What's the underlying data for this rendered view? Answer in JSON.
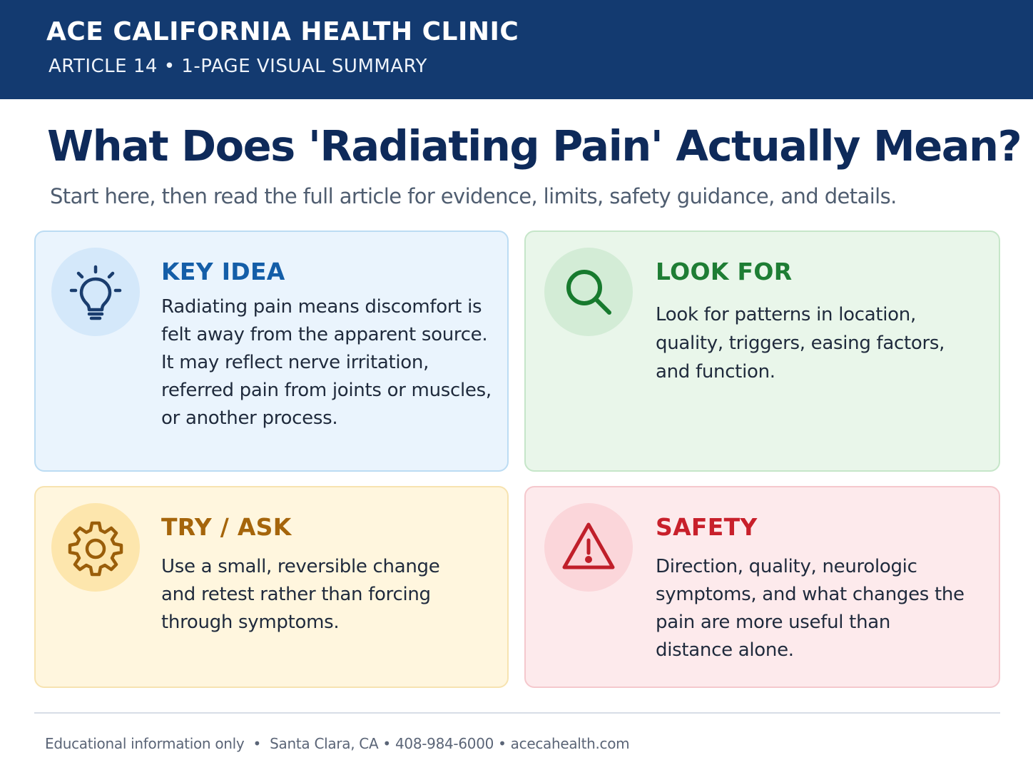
{
  "header": {
    "clinic_name": "ACE CALIFORNIA HEALTH CLINIC",
    "subline": "ARTICLE 14 • 1-PAGE VISUAL SUMMARY",
    "background_color": "#133a70"
  },
  "main": {
    "title": "What Does 'Radiating Pain' Actually Mean?",
    "subtitle": "Start here, then read the full article for evidence, limits, safety guidance, and details."
  },
  "cards": {
    "key_idea": {
      "icon": "lightbulb-icon",
      "heading": "KEY IDEA",
      "body": "Radiating pain means discomfort is felt away from the apparent source. It may reflect nerve irritation, referred pain from joints or muscles, or another process.",
      "accent_color": "#145ea8"
    },
    "look_for": {
      "icon": "magnifier-icon",
      "heading": "LOOK FOR",
      "body": "Look for patterns in location, quality, triggers, easing factors, and function.",
      "accent_color": "#1e7d34"
    },
    "try_ask": {
      "icon": "gear-icon",
      "heading": "TRY / ASK",
      "body": "Use a small, reversible change and retest rather than forcing through symptoms.",
      "accent_color": "#a5650b"
    },
    "safety": {
      "icon": "warning-triangle-icon",
      "heading": "SAFETY",
      "body": "Direction, quality, neurologic symptoms, and what changes the pain are more useful than distance alone.",
      "accent_color": "#c8202b"
    }
  },
  "footer": {
    "text": "Educational information only  •  Santa Clara, CA • 408-984-6000 • acecahealth.com"
  }
}
